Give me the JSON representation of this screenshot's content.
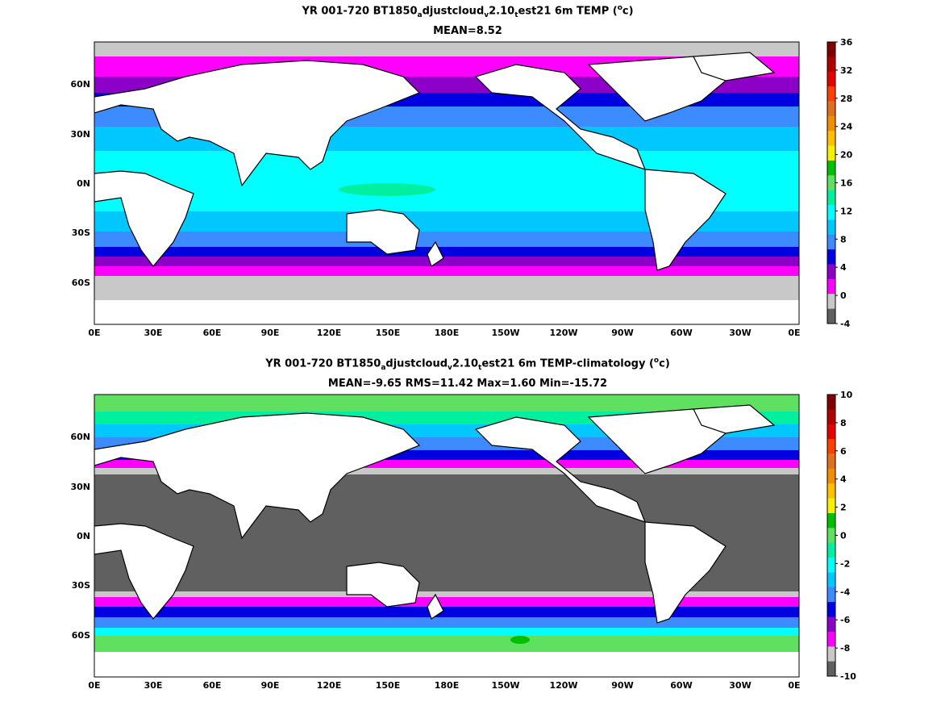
{
  "panels": [
    {
      "title_main": "YR 001-720 BT1850",
      "title_sub1": "a",
      "title_mid1": "djustcloud",
      "title_sub2": "v",
      "title_mid2": "2.10",
      "title_sub3": "t",
      "title_mid3": "est21 6m TEMP (",
      "title_sup": "o",
      "title_end": "c)",
      "stats": "MEAN=8.52",
      "colorbar_ticks": [
        "36",
        "32",
        "28",
        "24",
        "20",
        "16",
        "12",
        "8",
        "4",
        "0",
        "-4"
      ],
      "colorbar_colors": [
        "#800000",
        "#b00000",
        "#e60000",
        "#ff4000",
        "#e07020",
        "#f09000",
        "#ffc000",
        "#f8f000",
        "#00c000",
        "#60e060",
        "#00f0a0",
        "#00ffff",
        "#00c8ff",
        "#3c8cff",
        "#0000e0",
        "#8c00c8",
        "#ff00ff",
        "#c8c8c8",
        "#606060"
      ]
    },
    {
      "title_main": "YR 001-720 BT1850",
      "title_sub1": "a",
      "title_mid1": "djustcloud",
      "title_sub2": "v",
      "title_mid2": "2.10",
      "title_sub3": "t",
      "title_mid3": "est21 6m TEMP-climatology (",
      "title_sup": "o",
      "title_end": "c)",
      "stats": "MEAN=-9.65   RMS=11.42   Max=1.60   Min=-15.72",
      "colorbar_ticks": [
        "10",
        "8",
        "6",
        "4",
        "2",
        "0",
        "-2",
        "-4",
        "-6",
        "-8",
        "-10"
      ],
      "colorbar_colors": [
        "#800000",
        "#b00000",
        "#e60000",
        "#ff4000",
        "#e07020",
        "#f09000",
        "#ffc000",
        "#f8f000",
        "#00c000",
        "#60e060",
        "#00f0a0",
        "#00ffff",
        "#00c8ff",
        "#3c8cff",
        "#0000e0",
        "#8c00c8",
        "#ff00ff",
        "#c8c8c8",
        "#606060"
      ]
    }
  ],
  "x_ticks": [
    "0E",
    "30E",
    "60E",
    "90E",
    "120E",
    "150E",
    "180E",
    "150W",
    "120W",
    "90W",
    "60W",
    "30W",
    "0E"
  ],
  "y_ticks": [
    "60N",
    "30N",
    "0N",
    "30S",
    "60S"
  ]
}
